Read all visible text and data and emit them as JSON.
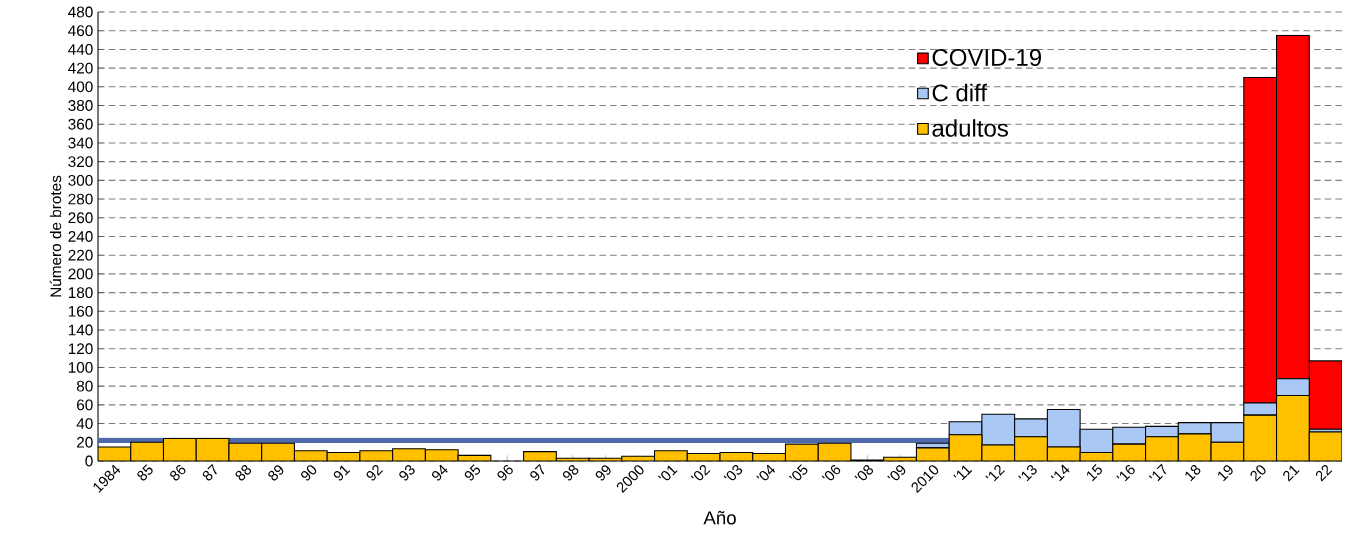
{
  "chart_data": {
    "type": "bar",
    "stacked": true,
    "xlabel": "Año",
    "ylabel": "Número de brotes",
    "categories": [
      "1984",
      "85",
      "86",
      "87",
      "88",
      "89",
      "90",
      "91",
      "92",
      "93",
      "94",
      "95",
      "96",
      "97",
      "98",
      "99",
      "2000",
      "'01",
      "'02",
      "'03",
      "'04",
      "'05",
      "'06",
      "'08",
      "'09",
      "2010",
      "'11",
      "'12",
      "'13",
      "'14",
      "15",
      "'16",
      "'17",
      "18",
      "19",
      "20",
      "21",
      "22"
    ],
    "series": [
      {
        "name": "adultos",
        "color": "#ffc000",
        "values": [
          15,
          20,
          24,
          24,
          19,
          19,
          11,
          9,
          11,
          13,
          12,
          6,
          0,
          10,
          3,
          3,
          5,
          11,
          8,
          9,
          8,
          18,
          19,
          1,
          4,
          14,
          28,
          17,
          26,
          15,
          9,
          18,
          26,
          29,
          20,
          49,
          70,
          31
        ]
      },
      {
        "name": "C diff",
        "color": "#a9c8f5",
        "values": [
          0,
          0,
          0,
          0,
          0,
          0,
          0,
          0,
          0,
          0,
          0,
          0,
          0,
          0,
          0,
          0,
          0,
          0,
          0,
          0,
          0,
          0,
          0,
          0,
          0,
          5,
          14,
          33,
          19,
          40,
          25,
          18,
          11,
          12,
          21,
          13,
          18,
          3
        ]
      },
      {
        "name": "COVID-19",
        "color": "#ff0000",
        "values": [
          0,
          0,
          0,
          0,
          0,
          0,
          0,
          0,
          0,
          0,
          0,
          0,
          0,
          0,
          0,
          0,
          0,
          0,
          0,
          0,
          0,
          0,
          0,
          0,
          0,
          0,
          0,
          0,
          0,
          0,
          0,
          0,
          0,
          0,
          0,
          348,
          367,
          73
        ]
      }
    ],
    "ylim": [
      0,
      480
    ],
    "yticks": [
      0,
      20,
      40,
      60,
      80,
      100,
      120,
      140,
      160,
      180,
      200,
      220,
      240,
      260,
      280,
      300,
      320,
      340,
      360,
      380,
      400,
      420,
      440,
      460,
      480
    ],
    "grid": "y",
    "legend": "top right",
    "ref_lines": [
      {
        "axis": "y",
        "value": 22,
        "color": "#4f6aab"
      }
    ]
  }
}
